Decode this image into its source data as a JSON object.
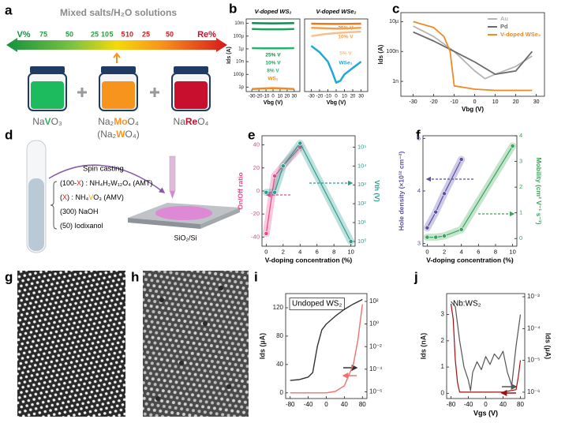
{
  "panel_labels": [
    "a",
    "b",
    "c",
    "d",
    "e",
    "f",
    "g",
    "h",
    "i",
    "j"
  ],
  "panel_a": {
    "title": "Mixed salts/H₂O solutions",
    "left_end": "V%",
    "right_end": "Re%",
    "scale": [
      75,
      50,
      25,
      10,
      5,
      5,
      10,
      25,
      50
    ],
    "formulas": [
      [
        "Na",
        "V",
        "O₃"
      ],
      [
        "Na₂",
        "Mo",
        "O₄"
      ],
      [
        "(Na₂",
        "W",
        "O₄)"
      ],
      [
        "Na",
        "Re",
        "O₄"
      ]
    ]
  },
  "panel_d": {
    "step": "Spin casting",
    "recipe": [
      [
        "(100-",
        "X",
        ") : NH₄H₂W₁₂O₄ (AMT)"
      ],
      [
        "(",
        "X",
        ") : NH₄",
        "V",
        "O₃ (AMV)"
      ],
      [
        "(300) NaOH"
      ],
      [
        "(50) Iodixanol"
      ]
    ],
    "substrate": "SiO₂/Si"
  },
  "chart_data": [
    {
      "type": "line",
      "title": "V-doped WS₂",
      "x_label": "Vbg (V)",
      "y_label": "Ids (A)",
      "xlim": [
        -38,
        38
      ],
      "xticks": [
        -30,
        -20,
        -10,
        0,
        10,
        20,
        30
      ],
      "ylog": true,
      "ylim": [
        2e-13,
        0.05
      ],
      "yticks": [
        {
          "value": 0.01,
          "label": "10m"
        },
        {
          "value": 0.0001,
          "label": "100µ"
        },
        {
          "value": 1e-06,
          "label": "1µ"
        },
        {
          "value": 1e-08,
          "label": "10n"
        },
        {
          "value": 1e-10,
          "label": "100p"
        },
        {
          "value": 1e-12,
          "label": "1p"
        }
      ],
      "x": [
        -30,
        -15,
        0,
        15,
        30
      ],
      "series": [
        {
          "name": "25% V",
          "color": "#138a4e",
          "values": [
            0.011,
            0.0105,
            0.01,
            0.0105,
            0.011
          ]
        },
        {
          "name": "10% V",
          "color": "#1aa35e",
          "values": [
            0.0013,
            0.0012,
            0.0012,
            0.0012,
            0.0013
          ]
        },
        {
          "name": "8% V",
          "color": "#26b36a",
          "values": [
            1.3e-06,
            1.2e-06,
            1.2e-06,
            1.2e-06,
            1.3e-06
          ]
        },
        {
          "name": "WS₂",
          "color": "#f28a1c",
          "values": [
            5e-13,
            6e-13,
            7e-13,
            6e-13,
            5e-13
          ]
        }
      ]
    },
    {
      "type": "line",
      "title": "V-doped WSe₂",
      "x_label": "Vbg (V)",
      "xlim": [
        -38,
        38
      ],
      "xticks": [
        -30,
        -20,
        -10,
        0,
        10,
        20,
        30
      ],
      "ylog": true,
      "ylim": [
        2e-13,
        0.05
      ],
      "x": [
        -30,
        -15,
        0,
        15,
        30
      ],
      "series": [
        {
          "name": "25% V",
          "color": "#e87a1a",
          "values": [
            0.009,
            0.0085,
            0.008,
            0.0085,
            0.009
          ]
        },
        {
          "name": "10% V",
          "color": "#f0a050",
          "values": [
            0.002,
            0.0018,
            0.0015,
            0.0017,
            0.002
          ]
        },
        {
          "name": "5% V",
          "color": "#f5c08a",
          "values": [
            0.0001,
            0.0002,
            0.0003,
            0.0004,
            0.0005
          ]
        },
        {
          "name": "WSe₂",
          "color": "#1fa8d8",
          "x": [
            -30,
            -20,
            -10,
            -5,
            0,
            5,
            10,
            20,
            30
          ],
          "values": [
            3e-06,
            3e-07,
            1e-08,
            3e-10,
            5e-12,
            1e-11,
            1e-10,
            1e-09,
            1e-08
          ]
        }
      ]
    },
    {
      "type": "line",
      "x_label": "Vbg (V)",
      "y_label": "Ids (A)",
      "xlim": [
        -36,
        34
      ],
      "xticks": [
        -30,
        -20,
        -10,
        0,
        10,
        20,
        30
      ],
      "ylog": true,
      "ylim": [
        1e-10,
        4e-05
      ],
      "yticks": [
        {
          "value": 1e-05,
          "label": "10µ"
        },
        {
          "value": 1e-07,
          "label": "100n"
        },
        {
          "value": 1e-09,
          "label": "1n"
        }
      ],
      "legend": "upper right",
      "series": [
        {
          "name": "Au",
          "color": "#b5b5b5",
          "x": [
            -30,
            -20,
            -10,
            0,
            5,
            10,
            20,
            28
          ],
          "values": [
            5e-06,
            1e-06,
            1e-07,
            5e-09,
            1.5e-09,
            3e-09,
            1e-08,
            5e-08
          ]
        },
        {
          "name": "Pd",
          "color": "#6a6a6a",
          "x": [
            -30,
            -20,
            -10,
            0,
            10,
            20,
            28
          ],
          "values": [
            2e-06,
            5e-07,
            1e-07,
            2e-08,
            3e-09,
            5e-09,
            1e-07
          ]
        },
        {
          "name": "V-doped WSe₂",
          "color": "#f08a24",
          "x": [
            -30,
            -20,
            -15,
            -12,
            -10,
            0,
            10,
            20,
            28
          ],
          "values": [
            1e-05,
            4e-06,
            1e-06,
            1e-07,
            5e-10,
            3e-10,
            2.5e-10,
            2.5e-10,
            2.5e-10
          ]
        }
      ]
    },
    {
      "type": "line",
      "x_label": "V-doping concentration (%)",
      "y_label": "On/Off ratio",
      "y2_label": "Vth (V)",
      "xlim": [
        -0.5,
        10.5
      ],
      "xticks": [
        0,
        2,
        4,
        6,
        8,
        10
      ],
      "ylim": [
        -48,
        48
      ],
      "yticks": [
        -40,
        -20,
        0,
        20,
        40
      ],
      "y2log": true,
      "y2lim": [
        0.56,
        400000
      ],
      "y2ticks": [
        {
          "value": 1,
          "label": "10⁰"
        },
        {
          "value": 10,
          "label": "10¹"
        },
        {
          "value": 100,
          "label": "10²"
        },
        {
          "value": 1000,
          "label": "10³"
        },
        {
          "value": 10000,
          "label": "10⁴"
        },
        {
          "value": 100000,
          "label": "10⁵"
        }
      ],
      "series": [
        {
          "color": "#e8488a",
          "x": [
            0,
            1,
            2,
            4
          ],
          "values": [
            -37,
            13,
            22,
            38
          ]
        },
        {
          "color": "#2a9d8f",
          "axis": "y2",
          "x": [
            0,
            1,
            2,
            4,
            10
          ],
          "values": [
            400,
            400,
            10000,
            160000,
            1
          ]
        }
      ]
    },
    {
      "type": "line",
      "x_label": "V-doping concentration (%)",
      "y_label": "Hole density (×10¹² cm⁻²)",
      "y2_label": "Mobility (cm² V⁻¹ s⁻¹)",
      "xlim": [
        -0.5,
        10.5
      ],
      "xticks": [
        0,
        2,
        4,
        6,
        8,
        10
      ],
      "ylim": [
        2.95,
        5.05
      ],
      "yticks": [
        3,
        4,
        5
      ],
      "y2lim": [
        -0.3,
        4
      ],
      "y2ticks": [
        0,
        1,
        2,
        3,
        4
      ],
      "series": [
        {
          "color": "#5b4fa8",
          "x": [
            0,
            1,
            2,
            4
          ],
          "values": [
            3.3,
            3.6,
            3.95,
            4.6
          ]
        },
        {
          "color": "#3aa55a",
          "axis": "y2",
          "x": [
            0,
            1,
            2,
            4,
            10
          ],
          "values": [
            0.05,
            0.05,
            0.1,
            0.35,
            3.6
          ]
        }
      ]
    },
    {
      "type": "line",
      "annotation": "Undoped WS₂",
      "y_label": "Ids (µA)",
      "xlim": [
        -90,
        90
      ],
      "xticks": [
        -80,
        -40,
        0,
        40,
        80
      ],
      "ylim": [
        -8,
        140
      ],
      "yticks": [
        0,
        40,
        80,
        120
      ],
      "y2log": true,
      "y2lim": [
        2.5e-07,
        500
      ],
      "y2ticks": [
        {
          "value": 100,
          "label": "10²"
        },
        {
          "value": 1,
          "label": "10⁰"
        },
        {
          "value": 0.01,
          "label": "10⁻²"
        },
        {
          "value": 0.0001,
          "label": "10⁻⁴"
        },
        {
          "value": 1e-06,
          "label": "10⁻⁶"
        }
      ],
      "series": [
        {
          "color": "#333333",
          "axis": "y2",
          "x": [
            -80,
            -60,
            -40,
            -30,
            -20,
            -10,
            0,
            20,
            40,
            60,
            80
          ],
          "values": [
            1e-05,
            1.2e-05,
            2e-05,
            5e-05,
            0.01,
            0.3,
            1,
            5,
            20,
            60,
            150
          ]
        },
        {
          "color": "#f07070",
          "x": [
            -80,
            -40,
            0,
            20,
            40,
            60,
            70,
            80
          ],
          "values": [
            0,
            0,
            0,
            2,
            10,
            40,
            75,
            125
          ]
        }
      ]
    },
    {
      "type": "line",
      "annotation": "Nb:WS₂",
      "x_label": "Vgs (V)",
      "y_label": "Ids (nA)",
      "y2_label": "Ids (µA)",
      "xlim": [
        -90,
        90
      ],
      "xticks": [
        -80,
        -40,
        0,
        40,
        80
      ],
      "ylim": [
        -0.2,
        3.8
      ],
      "yticks": [
        0,
        1,
        2,
        3
      ],
      "y2log": true,
      "y2lim": [
        6.3e-07,
        0.00126
      ],
      "y2ticks": [
        {
          "value": 0.001,
          "label": "10⁻³"
        },
        {
          "value": 0.0001,
          "label": "10⁻⁴"
        },
        {
          "value": 1e-05,
          "label": "10⁻⁵"
        },
        {
          "value": 1e-06,
          "label": "10⁻⁶"
        }
      ],
      "series": [
        {
          "color": "#555555",
          "x": [
            -80,
            -70,
            -60,
            -50,
            -40,
            -35,
            -30,
            -20,
            -10,
            0,
            10,
            20,
            30,
            40,
            50,
            60,
            70,
            80
          ],
          "values": [
            3.5,
            3.3,
            2.0,
            1.0,
            0.5,
            0.1,
            0.8,
            1.2,
            0.9,
            1.4,
            1.1,
            1.5,
            1.3,
            1.6,
            0.8,
            0.3,
            1.8,
            3.0
          ]
        },
        {
          "color": "#a01010",
          "axis": "y2",
          "x": [
            -80,
            -75,
            -70,
            -65,
            -60,
            -40,
            0,
            40,
            70,
            75,
            80
          ],
          "values": [
            0.0006,
            0.0002,
            1e-05,
            2e-06,
            1e-06,
            1e-06,
            1e-06,
            1e-06,
            1.2e-06,
            3e-06,
            1e-05
          ]
        }
      ]
    }
  ]
}
